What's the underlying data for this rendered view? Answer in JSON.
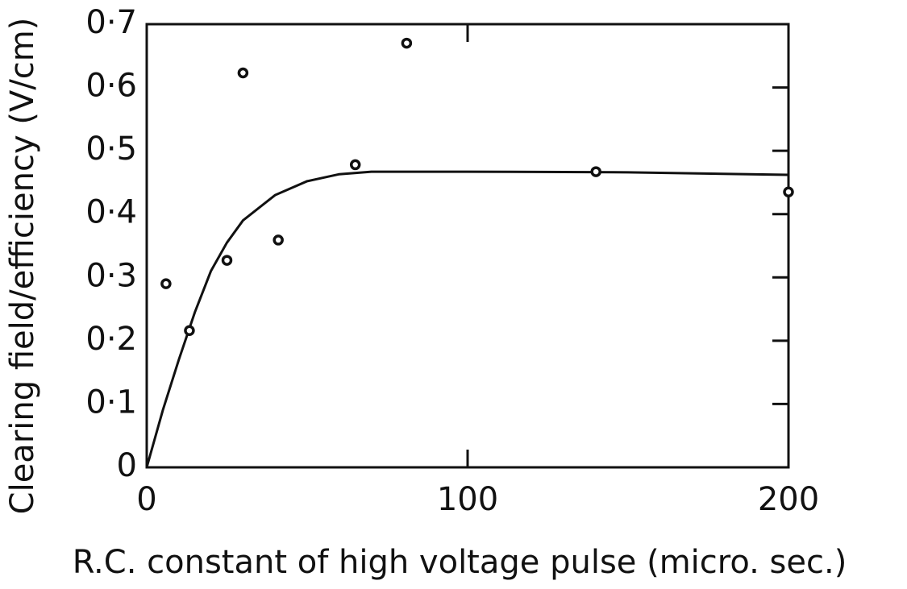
{
  "chart_data": {
    "type": "scatter",
    "xlabel": "R.C. constant of high voltage pulse (micro. sec.)",
    "ylabel": "Clearing field/efficiency (V/cm)",
    "x": [
      6,
      13.3,
      25,
      30,
      41,
      65,
      81,
      140,
      200
    ],
    "values": [
      0.29,
      0.216,
      0.327,
      0.623,
      0.359,
      0.478,
      0.67,
      0.467,
      0.435
    ],
    "color": "#111111",
    "fit": {
      "x": [
        0,
        5,
        10,
        15,
        20,
        25,
        30,
        40,
        50,
        60,
        70,
        100,
        150,
        200
      ],
      "values": [
        0,
        0.09,
        0.17,
        0.245,
        0.31,
        0.355,
        0.39,
        0.43,
        0.452,
        0.463,
        0.467,
        0.467,
        0.466,
        0.462
      ]
    },
    "xlim": [
      0,
      200
    ],
    "xticks": [
      0,
      100,
      200
    ],
    "ylim": [
      0,
      0.7
    ],
    "yticks": [
      0,
      {
        "value": 0.1,
        "label": "0·1"
      },
      {
        "value": 0.2,
        "label": "0·2"
      },
      {
        "value": 0.3,
        "label": "0·3"
      },
      {
        "value": 0.4,
        "label": "0·4"
      },
      {
        "value": 0.5,
        "label": "0·5"
      },
      {
        "value": 0.6,
        "label": "0·6"
      },
      {
        "value": 0.7,
        "label": "0·7"
      }
    ],
    "grid": false
  }
}
